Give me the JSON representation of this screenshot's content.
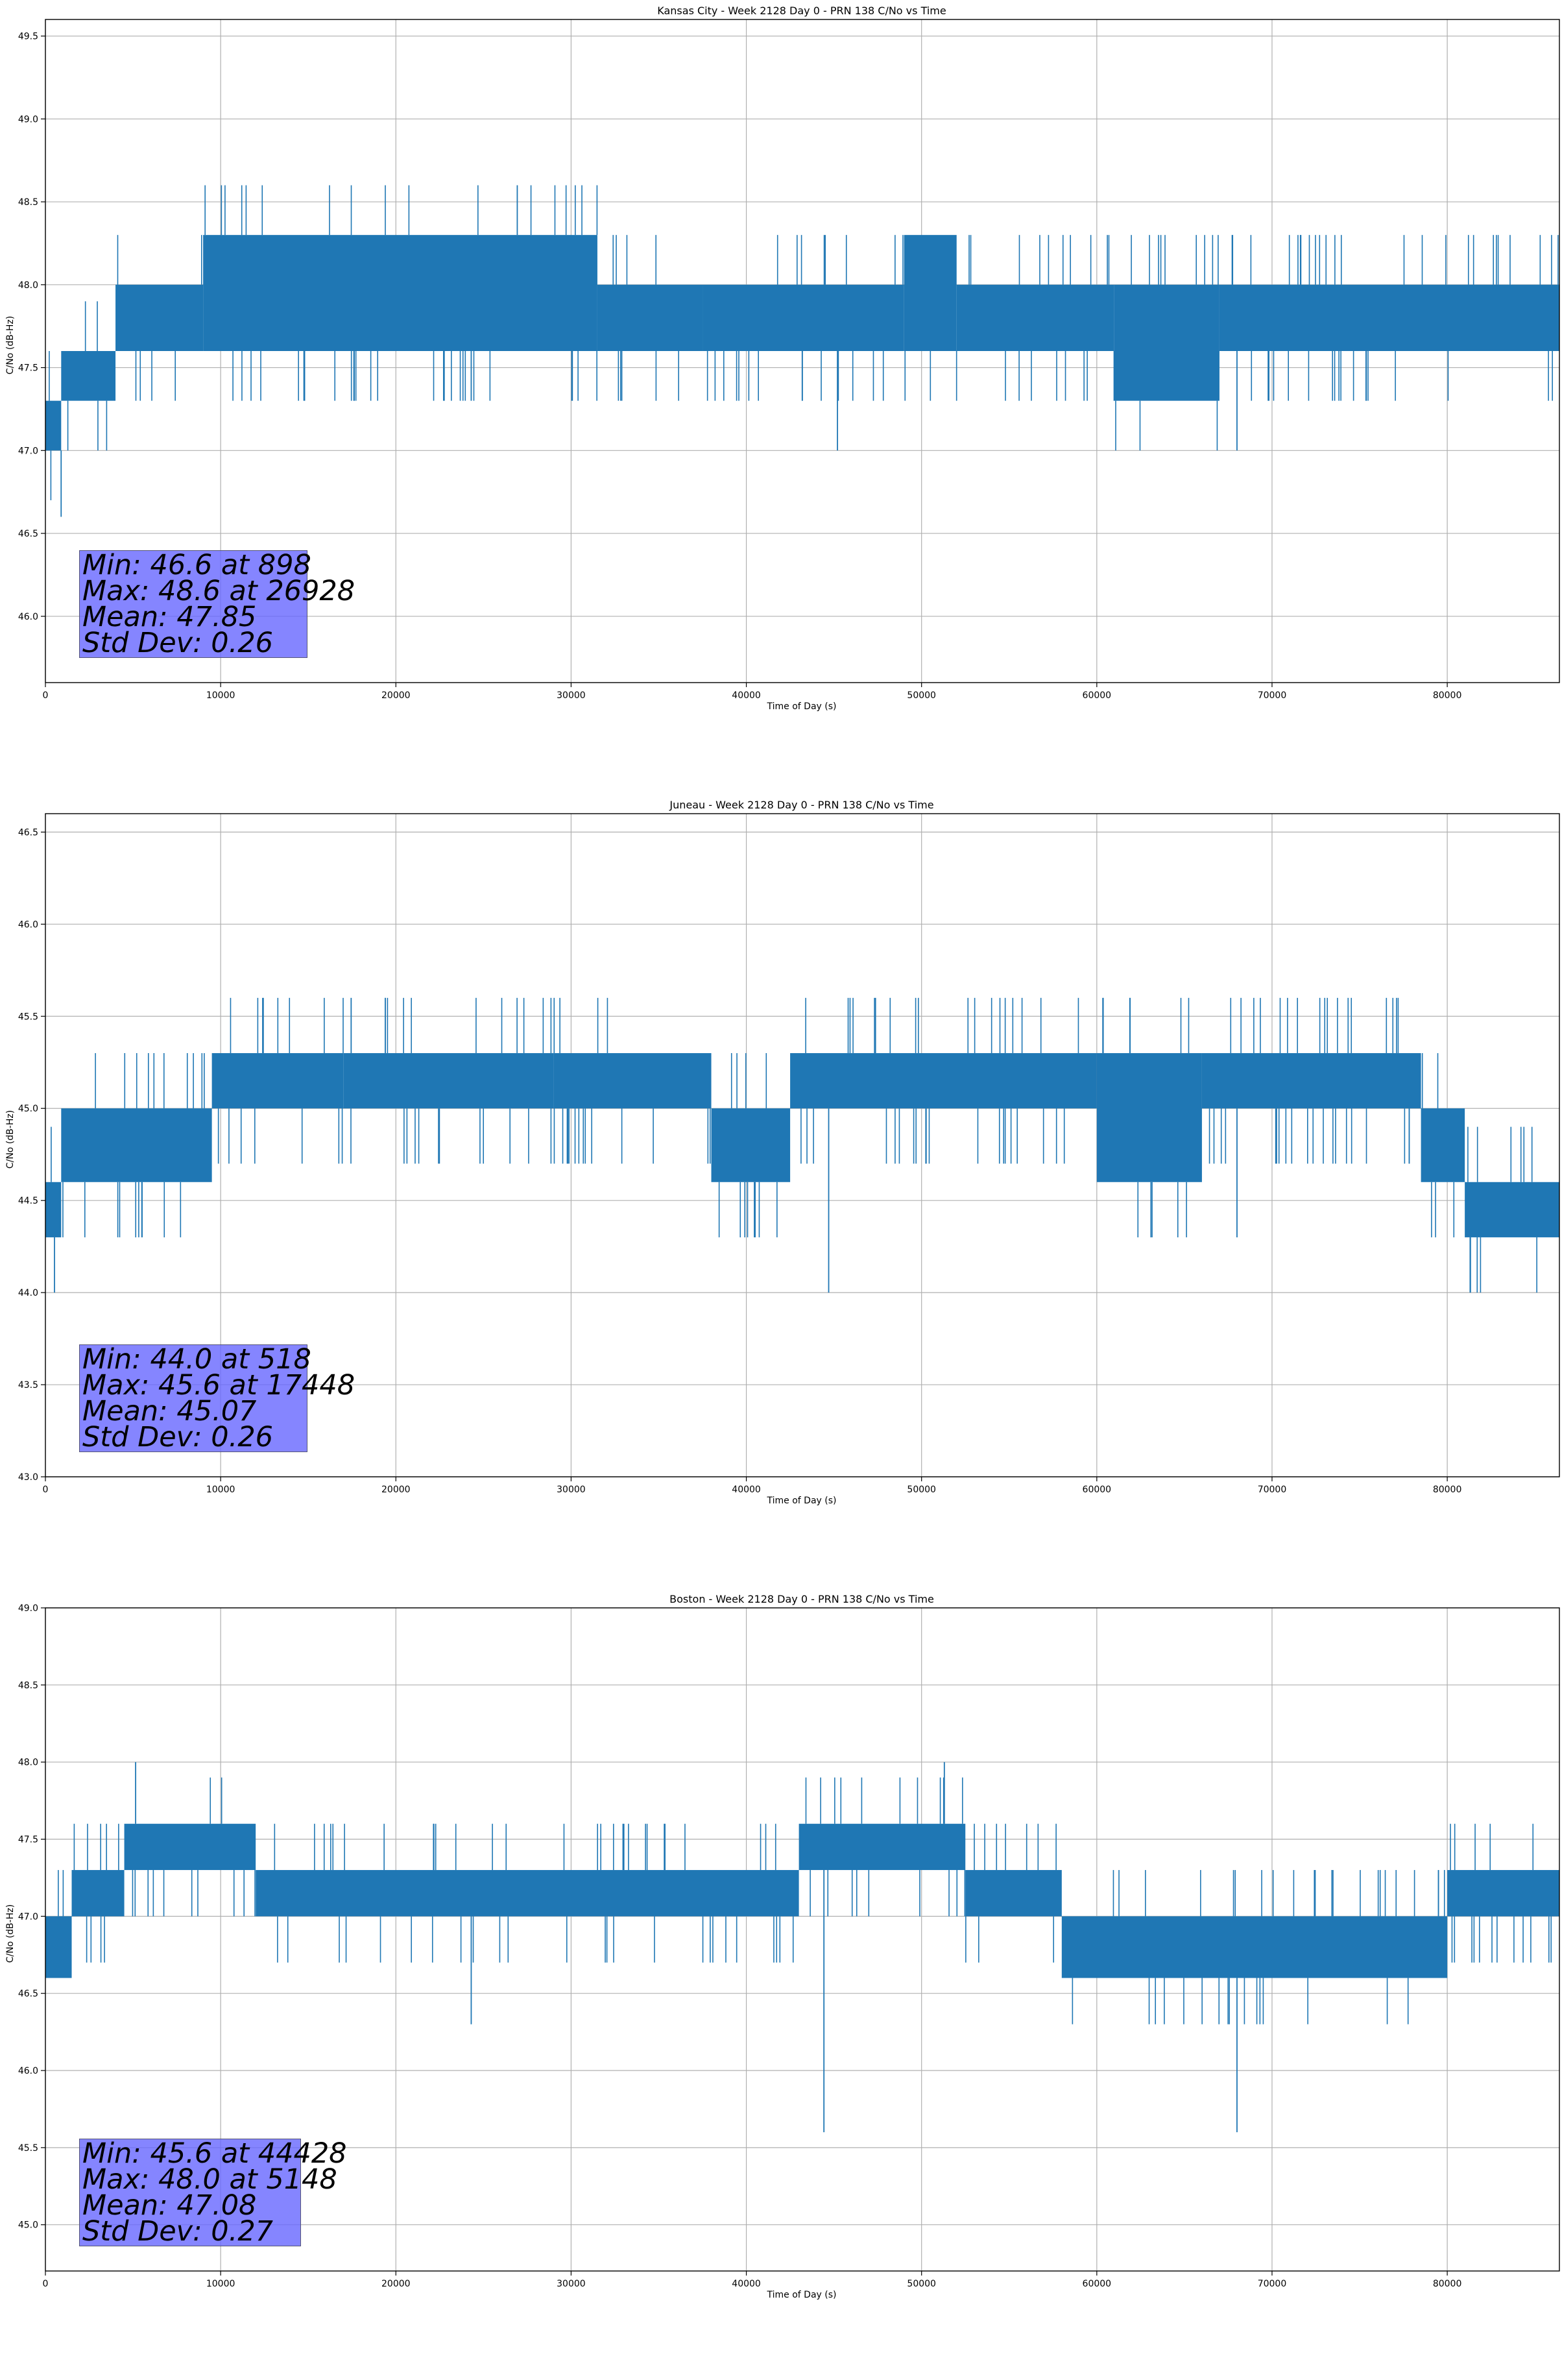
{
  "chart_data": [
    {
      "type": "line",
      "title": "Kansas City - Week 2128 Day 0 - PRN 138 C/No vs Time",
      "xlabel": "Time of Day (s)",
      "ylabel": "C/No (dB-Hz)",
      "xlim": [
        0,
        86400
      ],
      "ylim": [
        45.6,
        49.6
      ],
      "xticks": [
        0,
        10000,
        20000,
        30000,
        40000,
        50000,
        60000,
        70000,
        80000
      ],
      "yticks": [
        46.0,
        46.5,
        47.0,
        47.5,
        48.0,
        48.5,
        49.0,
        49.5
      ],
      "ytick_labels": [
        "46.0",
        "46.5",
        "47.0",
        "47.5",
        "48.0",
        "48.5",
        "49.0",
        "49.5"
      ],
      "grid": true,
      "color": "#1f77b4",
      "bands": [
        {
          "x0": 0,
          "x1": 900,
          "lo": 47.0,
          "hi": 47.3
        },
        {
          "x0": 900,
          "x1": 4000,
          "lo": 47.3,
          "hi": 47.6
        },
        {
          "x0": 4000,
          "x1": 9000,
          "lo": 47.6,
          "hi": 48.0
        },
        {
          "x0": 9000,
          "x1": 31500,
          "lo": 47.6,
          "hi": 48.3
        },
        {
          "x0": 31500,
          "x1": 37500,
          "lo": 47.6,
          "hi": 48.0
        },
        {
          "x0": 37500,
          "x1": 49000,
          "lo": 47.6,
          "hi": 48.0
        },
        {
          "x0": 49000,
          "x1": 52000,
          "lo": 47.6,
          "hi": 48.3
        },
        {
          "x0": 52000,
          "x1": 61000,
          "lo": 47.6,
          "hi": 48.0
        },
        {
          "x0": 61000,
          "x1": 67000,
          "lo": 47.3,
          "hi": 48.0
        },
        {
          "x0": 67000,
          "x1": 86400,
          "lo": 47.6,
          "hi": 48.0
        }
      ],
      "spikes": [
        {
          "x": 898,
          "y": 46.6
        },
        {
          "x": 26928,
          "y": 48.6
        },
        {
          "x": 45200,
          "y": 47.0
        },
        {
          "x": 68000,
          "y": 47.0
        },
        {
          "x": 24300,
          "y": 47.3
        }
      ],
      "stats": [
        "Min: 46.6 at 898",
        "Max: 48.6 at 26928",
        "Mean: 47.85",
        "Std Dev: 0.26"
      ]
    },
    {
      "type": "line",
      "title": "Juneau - Week 2128 Day 0 - PRN 138 C/No vs Time",
      "xlabel": "Time of Day (s)",
      "ylabel": "C/No (dB-Hz)",
      "xlim": [
        0,
        86400
      ],
      "ylim": [
        43.0,
        46.6
      ],
      "xticks": [
        0,
        10000,
        20000,
        30000,
        40000,
        50000,
        60000,
        70000,
        80000
      ],
      "yticks": [
        43.0,
        43.5,
        44.0,
        44.5,
        45.0,
        45.5,
        46.0,
        46.5
      ],
      "ytick_labels": [
        "43.0",
        "43.5",
        "44.0",
        "44.5",
        "45.0",
        "45.5",
        "46.0",
        "46.5"
      ],
      "grid": true,
      "color": "#1f77b4",
      "bands": [
        {
          "x0": 0,
          "x1": 900,
          "lo": 44.3,
          "hi": 44.6
        },
        {
          "x0": 900,
          "x1": 9500,
          "lo": 44.6,
          "hi": 45.0
        },
        {
          "x0": 9500,
          "x1": 17000,
          "lo": 45.0,
          "hi": 45.3
        },
        {
          "x0": 17000,
          "x1": 29000,
          "lo": 45.0,
          "hi": 45.3
        },
        {
          "x0": 29000,
          "x1": 38000,
          "lo": 45.0,
          "hi": 45.3
        },
        {
          "x0": 38000,
          "x1": 42500,
          "lo": 44.6,
          "hi": 45.0
        },
        {
          "x0": 42500,
          "x1": 60000,
          "lo": 45.0,
          "hi": 45.3
        },
        {
          "x0": 60000,
          "x1": 66000,
          "lo": 44.6,
          "hi": 45.3
        },
        {
          "x0": 66000,
          "x1": 78500,
          "lo": 45.0,
          "hi": 45.3
        },
        {
          "x0": 78500,
          "x1": 81000,
          "lo": 44.6,
          "hi": 45.0
        },
        {
          "x0": 81000,
          "x1": 86400,
          "lo": 44.3,
          "hi": 44.6
        }
      ],
      "spikes": [
        {
          "x": 518,
          "y": 44.0
        },
        {
          "x": 17448,
          "y": 45.6
        },
        {
          "x": 44700,
          "y": 44.0
        },
        {
          "x": 68000,
          "y": 44.3
        },
        {
          "x": 40500,
          "y": 44.3
        }
      ],
      "stats": [
        "Min: 44.0 at 518",
        "Max: 45.6 at 17448",
        "Mean: 45.07",
        "Std Dev: 0.26"
      ]
    },
    {
      "type": "line",
      "title": "Boston - Week 2128 Day 0 - PRN 138 C/No vs Time",
      "xlabel": "Time of Day (s)",
      "ylabel": "C/No (dB-Hz)",
      "xlim": [
        0,
        86400
      ],
      "ylim": [
        44.7,
        49.0
      ],
      "xticks": [
        0,
        10000,
        20000,
        30000,
        40000,
        50000,
        60000,
        70000,
        80000
      ],
      "yticks": [
        45.0,
        45.5,
        46.0,
        46.5,
        47.0,
        47.5,
        48.0,
        48.5,
        49.0
      ],
      "ytick_labels": [
        "45.0",
        "45.5",
        "46.0",
        "46.5",
        "47.0",
        "47.5",
        "48.0",
        "48.5",
        "49.0"
      ],
      "grid": true,
      "color": "#1f77b4",
      "bands": [
        {
          "x0": 0,
          "x1": 1500,
          "lo": 46.6,
          "hi": 47.0
        },
        {
          "x0": 1500,
          "x1": 4500,
          "lo": 47.0,
          "hi": 47.3
        },
        {
          "x0": 4500,
          "x1": 12000,
          "lo": 47.3,
          "hi": 47.6
        },
        {
          "x0": 12000,
          "x1": 43000,
          "lo": 47.0,
          "hi": 47.3
        },
        {
          "x0": 43000,
          "x1": 52500,
          "lo": 47.3,
          "hi": 47.6
        },
        {
          "x0": 52500,
          "x1": 58000,
          "lo": 47.0,
          "hi": 47.3
        },
        {
          "x0": 58000,
          "x1": 80000,
          "lo": 46.6,
          "hi": 47.0
        },
        {
          "x0": 80000,
          "x1": 86400,
          "lo": 47.0,
          "hi": 47.3
        }
      ],
      "spikes": [
        {
          "x": 44428,
          "y": 45.6
        },
        {
          "x": 5148,
          "y": 48.0
        },
        {
          "x": 51300,
          "y": 48.0
        },
        {
          "x": 68000,
          "y": 45.6
        },
        {
          "x": 24300,
          "y": 46.3
        }
      ],
      "stats": [
        "Min: 45.6 at 44428",
        "Max: 48.0 at 5148",
        "Mean: 47.08",
        "Std Dev: 0.27"
      ]
    }
  ]
}
